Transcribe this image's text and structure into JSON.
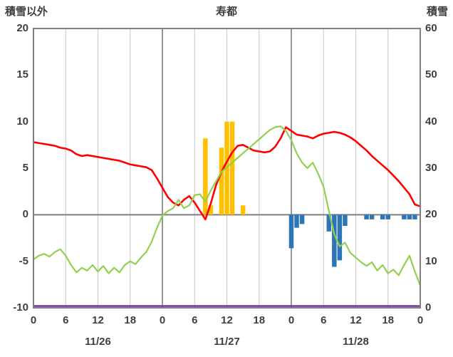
{
  "header": {
    "left_label": "積雪以外",
    "title": "寿都",
    "right_label": "積雪"
  },
  "chart_data": {
    "type": "mixed-line-bar",
    "title": "寿都",
    "x_span_hours": 72,
    "x_tick_interval_hours": 6,
    "x_tick_labels": [
      "0",
      "6",
      "12",
      "18",
      "0",
      "6",
      "12",
      "18",
      "0",
      "6",
      "12",
      "18",
      "0"
    ],
    "date_labels": [
      "11/26",
      "11/27",
      "11/28"
    ],
    "left_axis": {
      "label": "積雪以外",
      "min": -10,
      "max": 20,
      "ticks": [
        20,
        15,
        10,
        5,
        0,
        -5,
        -10
      ]
    },
    "right_axis": {
      "label": "積雪",
      "min": 0,
      "max": 60,
      "ticks": [
        60,
        50,
        40,
        30,
        20,
        10,
        0
      ]
    },
    "grid": {
      "vertical_minor": true,
      "vertical_major_at_day_breaks": true,
      "horizontal": false,
      "zero_line": true
    },
    "series": [
      {
        "name": "red-line",
        "type": "line",
        "axis": "left",
        "color": "#ff0000",
        "values": [
          7.8,
          7.7,
          7.6,
          7.5,
          7.4,
          7.2,
          7.1,
          6.9,
          6.5,
          6.3,
          6.4,
          6.3,
          6.2,
          6.1,
          6.0,
          5.9,
          5.8,
          5.6,
          5.4,
          5.3,
          5.2,
          5.1,
          4.8,
          3.9,
          2.9,
          1.9,
          1.3,
          1.0,
          1.6,
          2.0,
          1.3,
          0.4,
          -0.5,
          1.2,
          3.2,
          4.6,
          5.7,
          6.7,
          7.4,
          7.5,
          7.2,
          6.9,
          6.8,
          6.7,
          6.8,
          7.3,
          8.2,
          9.4,
          9.0,
          8.6,
          8.5,
          8.4,
          8.2,
          8.5,
          8.7,
          8.8,
          8.9,
          8.8,
          8.6,
          8.3,
          7.9,
          7.4,
          6.9,
          6.3,
          5.8,
          5.3,
          4.8,
          4.2,
          3.6,
          2.9,
          2.2,
          1.1,
          0.9
        ]
      },
      {
        "name": "green-line",
        "type": "line",
        "axis": "left",
        "color": "#92d050",
        "values": [
          -4.8,
          -4.4,
          -4.2,
          -4.5,
          -4.0,
          -3.7,
          -4.4,
          -5.4,
          -6.2,
          -5.7,
          -6.0,
          -5.4,
          -6.1,
          -5.5,
          -6.3,
          -5.7,
          -6.2,
          -5.4,
          -5.0,
          -5.3,
          -4.6,
          -4.0,
          -2.9,
          -1.4,
          -0.1,
          0.4,
          0.7,
          1.6,
          0.7,
          1.0,
          2.1,
          2.2,
          1.4,
          2.6,
          3.6,
          4.6,
          5.1,
          5.6,
          6.1,
          6.6,
          7.1,
          7.6,
          8.1,
          8.6,
          9.1,
          9.4,
          9.5,
          9.0,
          8.0,
          6.6,
          5.6,
          5.0,
          5.6,
          4.4,
          3.0,
          0.4,
          -2.1,
          -3.4,
          -3.0,
          -4.1,
          -4.6,
          -5.1,
          -5.5,
          -5.1,
          -6.0,
          -5.4,
          -6.3,
          -5.9,
          -6.5,
          -5.4,
          -4.4,
          -6.1,
          -7.6
        ]
      },
      {
        "name": "yellow-bars",
        "type": "bar",
        "axis": "left",
        "color": "#ffc000",
        "points": [
          {
            "hour": 32,
            "value": 8.2
          },
          {
            "hour": 33,
            "value": 1.0
          },
          {
            "hour": 35,
            "value": 7.2
          },
          {
            "hour": 36,
            "value": 10.0
          },
          {
            "hour": 37,
            "value": 10.0
          },
          {
            "hour": 39,
            "value": 1.0
          }
        ]
      },
      {
        "name": "blue-bars",
        "type": "bar",
        "axis": "left",
        "color": "#2e75b6",
        "points": [
          {
            "hour": 48,
            "value": -3.6
          },
          {
            "hour": 49,
            "value": -1.4
          },
          {
            "hour": 50,
            "value": -1.0
          },
          {
            "hour": 55,
            "value": -1.8
          },
          {
            "hour": 56,
            "value": -5.6
          },
          {
            "hour": 57,
            "value": -4.9
          },
          {
            "hour": 58,
            "value": -1.2
          },
          {
            "hour": 62,
            "value": -0.5
          },
          {
            "hour": 63,
            "value": -0.5
          },
          {
            "hour": 65,
            "value": -0.5
          },
          {
            "hour": 66,
            "value": -0.5
          },
          {
            "hour": 69,
            "value": -0.5
          },
          {
            "hour": 70,
            "value": -0.5
          },
          {
            "hour": 71,
            "value": -0.5
          }
        ]
      },
      {
        "name": "purple-line",
        "type": "line",
        "axis": "right",
        "color": "#7030a0",
        "constant": 0
      }
    ],
    "colors": {
      "border": "#808080",
      "grid_minor": "#cfcfcf",
      "grid_major": "#8a8a8a",
      "zero_line": "#7f7f7f",
      "text": "#3f3f3f"
    }
  }
}
